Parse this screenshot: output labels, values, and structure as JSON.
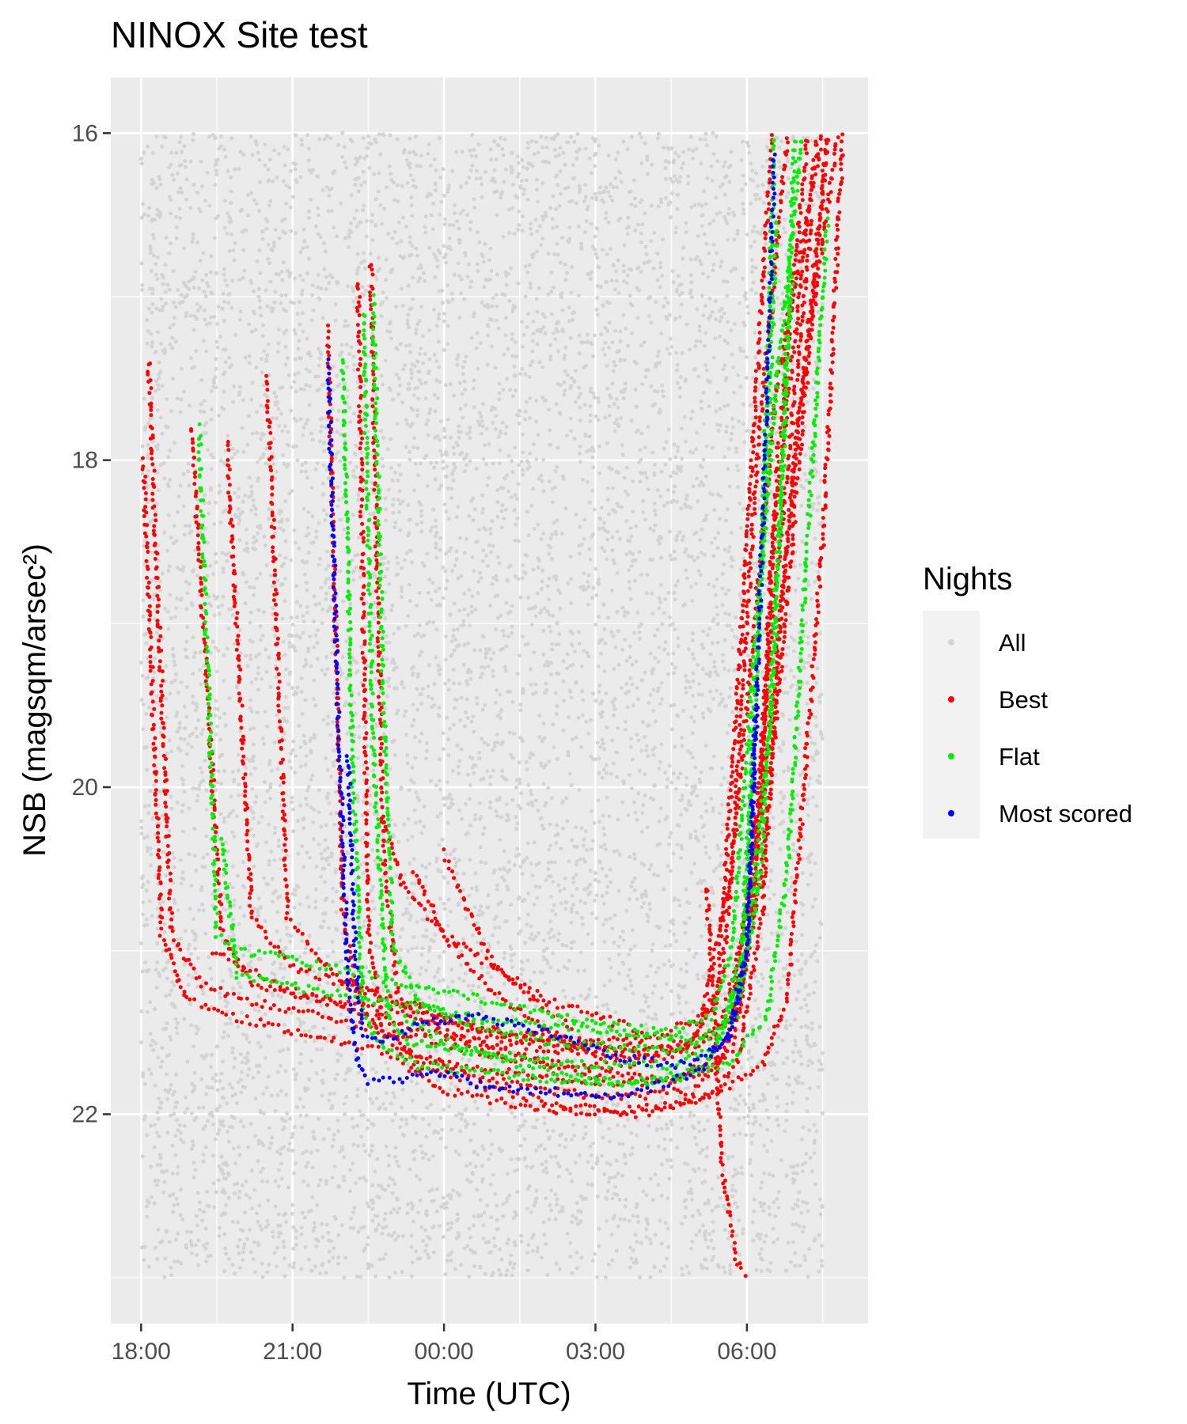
{
  "chart_data": {
    "type": "scatter",
    "title": "NINOX Site test",
    "xlabel": "Time (UTC)",
    "ylabel": "NSB (magsqm/arsec²)",
    "x_unit": "hours (UTC, continuing past midnight)",
    "xlim": [
      17.4,
      32.4
    ],
    "ylim": [
      16.0,
      23.0
    ],
    "y_reversed": true,
    "x_ticks": [
      {
        "value": 18,
        "label": "18:00"
      },
      {
        "value": 21,
        "label": "21:00"
      },
      {
        "value": 24,
        "label": "00:00"
      },
      {
        "value": 27,
        "label": "03:00"
      },
      {
        "value": 30,
        "label": "06:00"
      }
    ],
    "y_ticks": [
      {
        "value": 16,
        "label": "16"
      },
      {
        "value": 18,
        "label": "18"
      },
      {
        "value": 20,
        "label": "20"
      },
      {
        "value": 22,
        "label": "22"
      }
    ],
    "grid": true,
    "legend": {
      "title": "Nights",
      "position": "right",
      "entries": [
        {
          "name": "All",
          "color": "#d3d3d3"
        },
        {
          "name": "Best",
          "color": "#ff0000"
        },
        {
          "name": "Flat",
          "color": "#00ee00"
        },
        {
          "name": "Most scored",
          "color": "#0000ff"
        }
      ]
    },
    "series": [
      {
        "name": "Best",
        "color": "#ff0000",
        "nights": [
          {
            "x": [
              18.05,
              18.4,
              18.9,
              19.8,
              21.0,
              22.5,
              24.0,
              25.5,
              27.0,
              28.5,
              29.6,
              30.3,
              30.6,
              31.2
            ],
            "y": [
              18.0,
              20.9,
              21.3,
              21.4,
              21.5,
              21.6,
              21.7,
              21.75,
              21.8,
              21.8,
              21.6,
              20.0,
              18.0,
              16.0
            ]
          },
          {
            "x": [
              18.15,
              18.6,
              19.2,
              20.0,
              21.5,
              23.0,
              24.5,
              26.0,
              27.5,
              29.0,
              29.8,
              30.3,
              30.9,
              31.6
            ],
            "y": [
              17.4,
              20.9,
              21.2,
              21.3,
              21.4,
              21.5,
              21.6,
              21.7,
              21.7,
              21.6,
              21.4,
              20.5,
              18.5,
              16.0
            ]
          },
          {
            "x": [
              19.0,
              19.6,
              20.2,
              21.5,
              23.0,
              24.5,
              26.0,
              27.5,
              28.8,
              29.4,
              29.9,
              30.5
            ],
            "y": [
              17.8,
              20.9,
              21.2,
              21.3,
              21.45,
              21.55,
              21.6,
              21.65,
              21.6,
              21.3,
              19.0,
              16.0
            ]
          },
          {
            "x": [
              19.7,
              20.2,
              21.0,
              22.0,
              23.5,
              25.0,
              26.5,
              28.0,
              29.1,
              29.7,
              30.2,
              30.8
            ],
            "y": [
              17.9,
              20.8,
              21.1,
              21.2,
              21.35,
              21.5,
              21.55,
              21.55,
              21.4,
              20.5,
              18.0,
              16.0
            ]
          },
          {
            "x": [
              20.5,
              20.9,
              21.8,
              23.0,
              24.5,
              26.0,
              27.5,
              28.9,
              29.5,
              30.0,
              30.6,
              31.5
            ],
            "y": [
              17.5,
              20.8,
              21.15,
              21.3,
              21.45,
              21.55,
              21.6,
              21.55,
              21.2,
              19.5,
              17.5,
              16.0
            ]
          },
          {
            "x": [
              21.7,
              22.0,
              22.4,
              23.2,
              24.5,
              26.0,
              27.5,
              29.0,
              29.7,
              30.2,
              30.5,
              31.4
            ],
            "y": [
              17.2,
              20.8,
              21.4,
              21.6,
              21.75,
              21.85,
              21.9,
              21.85,
              21.6,
              20.5,
              18.5,
              16.0
            ]
          },
          {
            "x": [
              22.3,
              22.5,
              22.8,
              23.5,
              25.0,
              26.5,
              28.0,
              29.2,
              29.8,
              30.3,
              30.7,
              31.6
            ],
            "y": [
              16.9,
              20.9,
              21.5,
              21.7,
              21.85,
              21.95,
              22.0,
              21.9,
              21.7,
              20.8,
              18.8,
              16.0
            ]
          },
          {
            "x": [
              22.55,
              22.8,
              23.1,
              24.0,
              25.5,
              27.0,
              28.5,
              29.4,
              29.9,
              30.5,
              31.0,
              31.8
            ],
            "y": [
              16.8,
              20.4,
              21.3,
              21.5,
              21.65,
              21.75,
              21.8,
              21.7,
              21.3,
              19.5,
              17.8,
              16.0
            ]
          },
          {
            "x": [
              22.8,
              23.2,
              24.0,
              25.0,
              26.0,
              27.0,
              28.0
            ],
            "y": [
              20.2,
              20.6,
              20.9,
              21.1,
              21.3,
              21.4,
              21.5
            ]
          },
          {
            "x": [
              23.4,
              24.0,
              24.8,
              25.6,
              26.4,
              27.2
            ],
            "y": [
              20.5,
              20.9,
              21.2,
              21.4,
              21.55,
              21.65
            ]
          },
          {
            "x": [
              24.0,
              24.4,
              25.0,
              25.8,
              26.6
            ],
            "y": [
              20.4,
              20.7,
              21.1,
              21.3,
              21.5
            ]
          },
          {
            "x": [
              19.4,
              20.0,
              21.0,
              22.5,
              24.0,
              25.5,
              27.0,
              28.5,
              29.5,
              30.0,
              30.5,
              31.3
            ],
            "y": [
              21.0,
              21.1,
              21.25,
              21.35,
              21.45,
              21.55,
              21.6,
              21.6,
              21.45,
              20.8,
              19.0,
              16.5
            ]
          },
          {
            "x": [
              23.2,
              24.0,
              25.5,
              27.0,
              28.5,
              29.5,
              30.3,
              30.8,
              31.5,
              31.9
            ],
            "y": [
              21.7,
              21.85,
              21.95,
              22.0,
              21.95,
              21.85,
              21.7,
              21.3,
              18.5,
              16.0
            ]
          },
          {
            "x": [
              29.2,
              29.5,
              29.8,
              30.0
            ],
            "y": [
              20.6,
              22.3,
              22.9,
              23.0
            ]
          }
        ]
      },
      {
        "name": "Flat",
        "color": "#00ee00",
        "nights": [
          {
            "x": [
              19.15,
              19.5,
              19.9,
              21.0,
              22.5,
              24.0,
              25.5,
              27.0,
              28.5,
              29.3,
              29.7,
              30.2,
              30.6,
              31.1
            ],
            "y": [
              17.8,
              20.9,
              21.0,
              21.05,
              21.15,
              21.25,
              21.35,
              21.45,
              21.5,
              21.4,
              21.0,
              19.0,
              17.5,
              16.0
            ]
          },
          {
            "x": [
              19.6,
              19.9,
              20.6,
              21.6,
              22.6,
              23.5,
              24.5,
              26.0,
              27.5,
              29.0,
              29.8,
              30.3,
              30.7,
              30.95
            ],
            "y": [
              20.3,
              21.15,
              21.2,
              21.25,
              21.3,
              21.35,
              21.4,
              21.45,
              21.5,
              21.55,
              21.4,
              20.5,
              18.0,
              16.0
            ]
          },
          {
            "x": [
              22.0,
              22.2,
              22.4,
              22.8,
              23.5,
              25.0,
              26.5,
              28.0,
              29.2,
              29.9,
              30.3,
              30.55
            ],
            "y": [
              17.4,
              20.0,
              21.4,
              21.6,
              21.7,
              21.75,
              21.8,
              21.8,
              21.7,
              21.2,
              18.5,
              16.0
            ]
          },
          {
            "x": [
              22.4,
              22.6,
              22.9,
              23.3,
              24.0,
              25.5,
              27.0,
              28.5,
              29.4,
              29.9,
              30.25,
              30.6
            ],
            "y": [
              17.1,
              19.8,
              21.4,
              21.55,
              21.6,
              21.65,
              21.7,
              21.7,
              21.6,
              21.0,
              19.0,
              16.5
            ]
          },
          {
            "x": [
              22.6,
              22.8,
              23.0,
              23.5,
              24.5,
              26.0,
              27.5,
              28.8,
              29.5,
              30.0,
              30.5,
              30.9
            ],
            "y": [
              17.0,
              19.5,
              21.0,
              21.3,
              21.45,
              21.55,
              21.6,
              21.6,
              21.5,
              21.0,
              19.5,
              16.8
            ]
          },
          {
            "x": [
              23.2,
              24.0,
              25.5,
              27.0,
              28.5,
              29.6,
              30.4,
              30.8,
              31.3,
              31.6
            ],
            "y": [
              21.4,
              21.55,
              21.7,
              21.8,
              21.8,
              21.7,
              21.4,
              20.5,
              18.0,
              16.5
            ]
          }
        ]
      },
      {
        "name": "Most scored",
        "color": "#0000ff",
        "nights": [
          {
            "x": [
              21.7,
              21.9,
              22.1,
              22.3,
              22.5,
              23.0,
              24.0,
              25.0,
              26.0,
              27.0,
              28.0,
              29.0,
              29.6,
              30.0,
              30.3,
              30.55
            ],
            "y": [
              17.4,
              19.5,
              21.2,
              21.7,
              21.8,
              21.8,
              21.75,
              21.85,
              21.85,
              21.9,
              21.85,
              21.75,
              21.55,
              21.0,
              18.5,
              16.1
            ]
          },
          {
            "x": [
              22.1,
              22.25,
              22.4,
              22.8,
              23.5,
              24.5,
              25.5,
              26.5,
              27.5,
              28.5,
              29.2,
              29.7,
              30.0,
              30.2
            ],
            "y": [
              19.8,
              21.1,
              21.5,
              21.55,
              21.45,
              21.4,
              21.45,
              21.55,
              21.65,
              21.7,
              21.65,
              21.5,
              21.0,
              19.5
            ]
          }
        ]
      }
    ]
  }
}
